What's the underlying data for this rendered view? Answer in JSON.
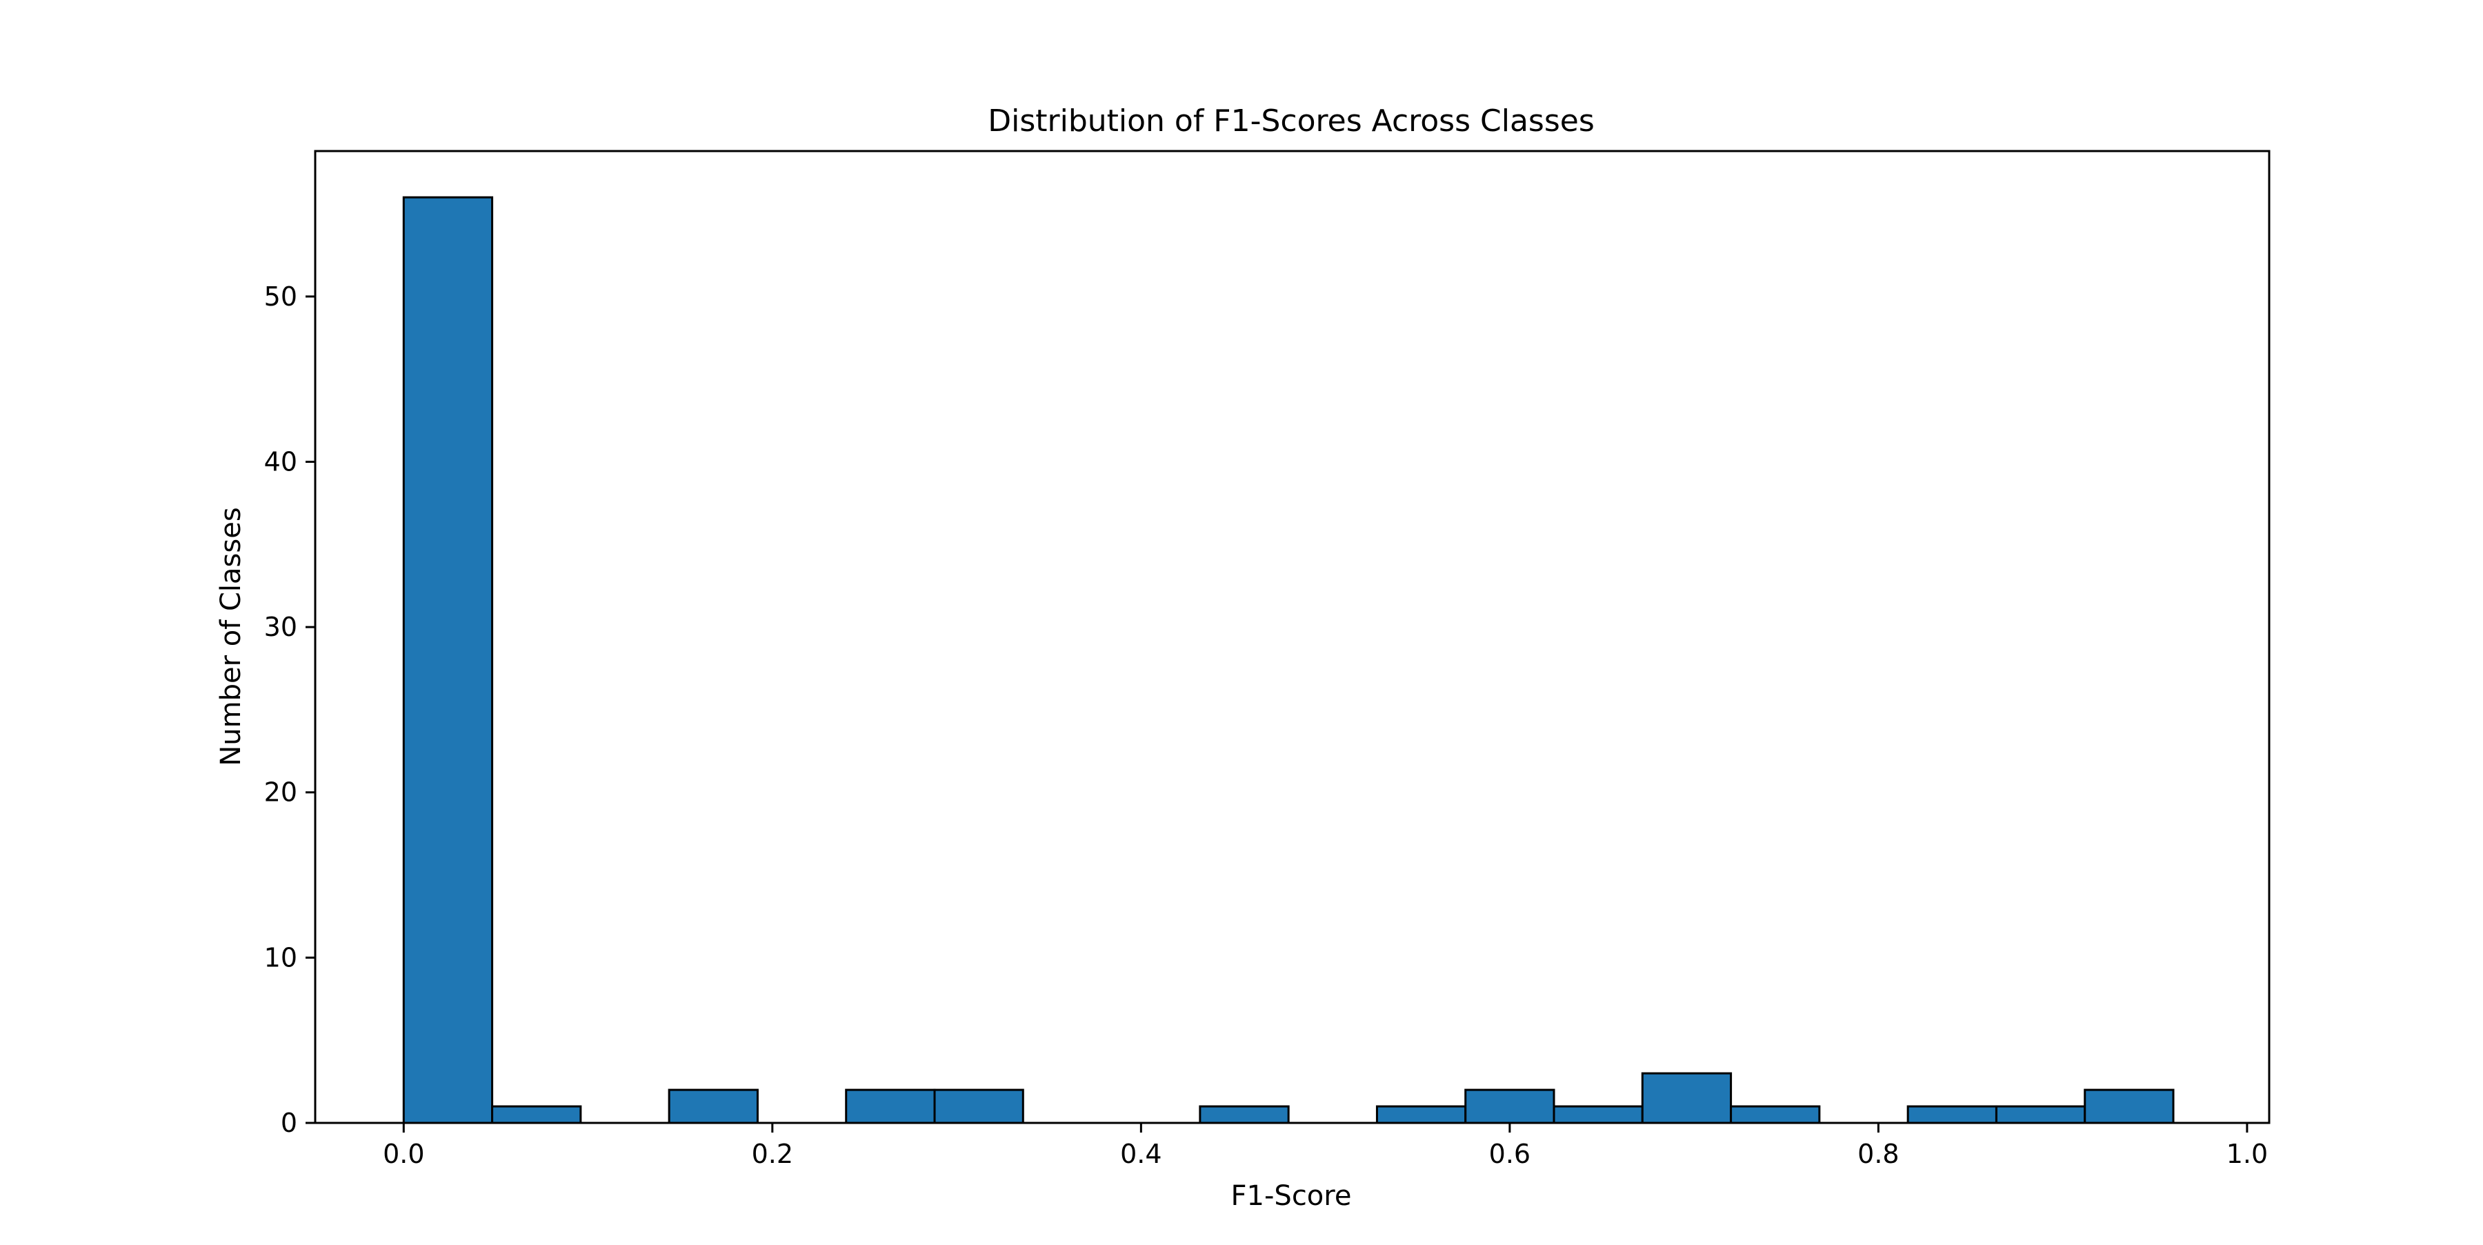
{
  "chart_data": {
    "type": "bar",
    "title": "Distribution of F1-Scores Across Classes",
    "xlabel": "F1-Score",
    "ylabel": "Number of Classes",
    "xlim": [
      -0.048,
      1.012
    ],
    "ylim": [
      0,
      58.8
    ],
    "xticks": [
      "0.0",
      "0.2",
      "0.4",
      "0.6",
      "0.8",
      "1.0"
    ],
    "xtick_values": [
      0.0,
      0.2,
      0.4,
      0.6,
      0.8,
      1.0
    ],
    "yticks": [
      "0",
      "10",
      "20",
      "30",
      "40",
      "50"
    ],
    "ytick_values": [
      0,
      10,
      20,
      30,
      40,
      50
    ],
    "bin_edges": [
      0.0,
      0.048,
      0.096,
      0.144,
      0.192,
      0.24,
      0.288,
      0.336,
      0.384,
      0.432,
      0.48,
      0.528,
      0.576,
      0.624,
      0.672,
      0.72,
      0.768,
      0.816,
      0.864,
      0.912,
      0.96
    ],
    "values": [
      56,
      1,
      0,
      2,
      0,
      2,
      2,
      0,
      0,
      1,
      0,
      1,
      2,
      1,
      3,
      1,
      0,
      1,
      1,
      2
    ],
    "grid": false,
    "colors": {
      "bar_fill": "#1f77b4",
      "bar_edge": "#000000",
      "axes": "#000000"
    }
  }
}
